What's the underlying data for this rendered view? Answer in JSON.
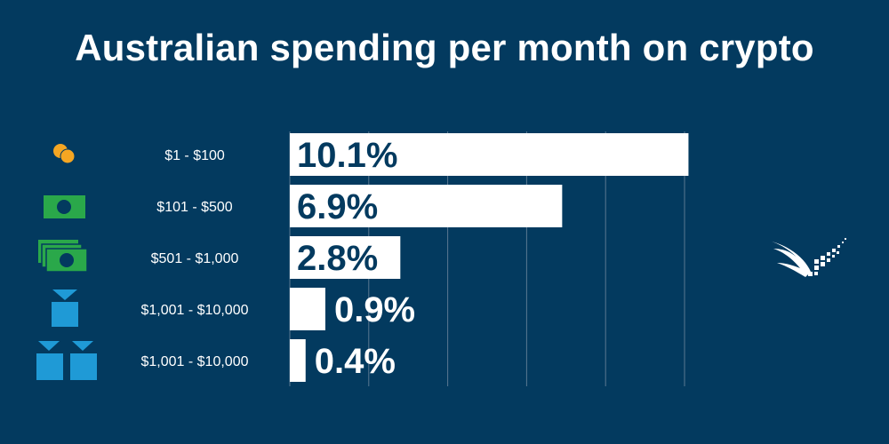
{
  "title": "Australian spending per month on crypto",
  "colors": {
    "background": "#033a5f",
    "bar": "#ffffff",
    "bar_text": "#033a5f",
    "outside_text": "#ffffff",
    "gridline": "#5a7891",
    "coin": "#f5a623",
    "banknote": "#2aa84a",
    "block": "#1f9ad6"
  },
  "chart_data": {
    "type": "bar",
    "orientation": "horizontal",
    "title": "Australian spending per month on crypto",
    "categories": [
      "$1 -  $100",
      "$101 -  $500",
      "$501 -  $1,000",
      "$1,001 -  $10,000",
      "$1,001 -  $10,000"
    ],
    "values": [
      10.1,
      6.9,
      2.8,
      0.9,
      0.4
    ],
    "value_labels": [
      "10.1%",
      "6.9%",
      "2.8%",
      "0.9%",
      "0.4%"
    ],
    "icons": [
      "coins-icon",
      "banknote-icon",
      "banknote-stack-icon",
      "block-icon",
      "blocks-icon"
    ],
    "xlim": [
      0,
      10
    ],
    "grid": true,
    "legend": "none"
  }
}
